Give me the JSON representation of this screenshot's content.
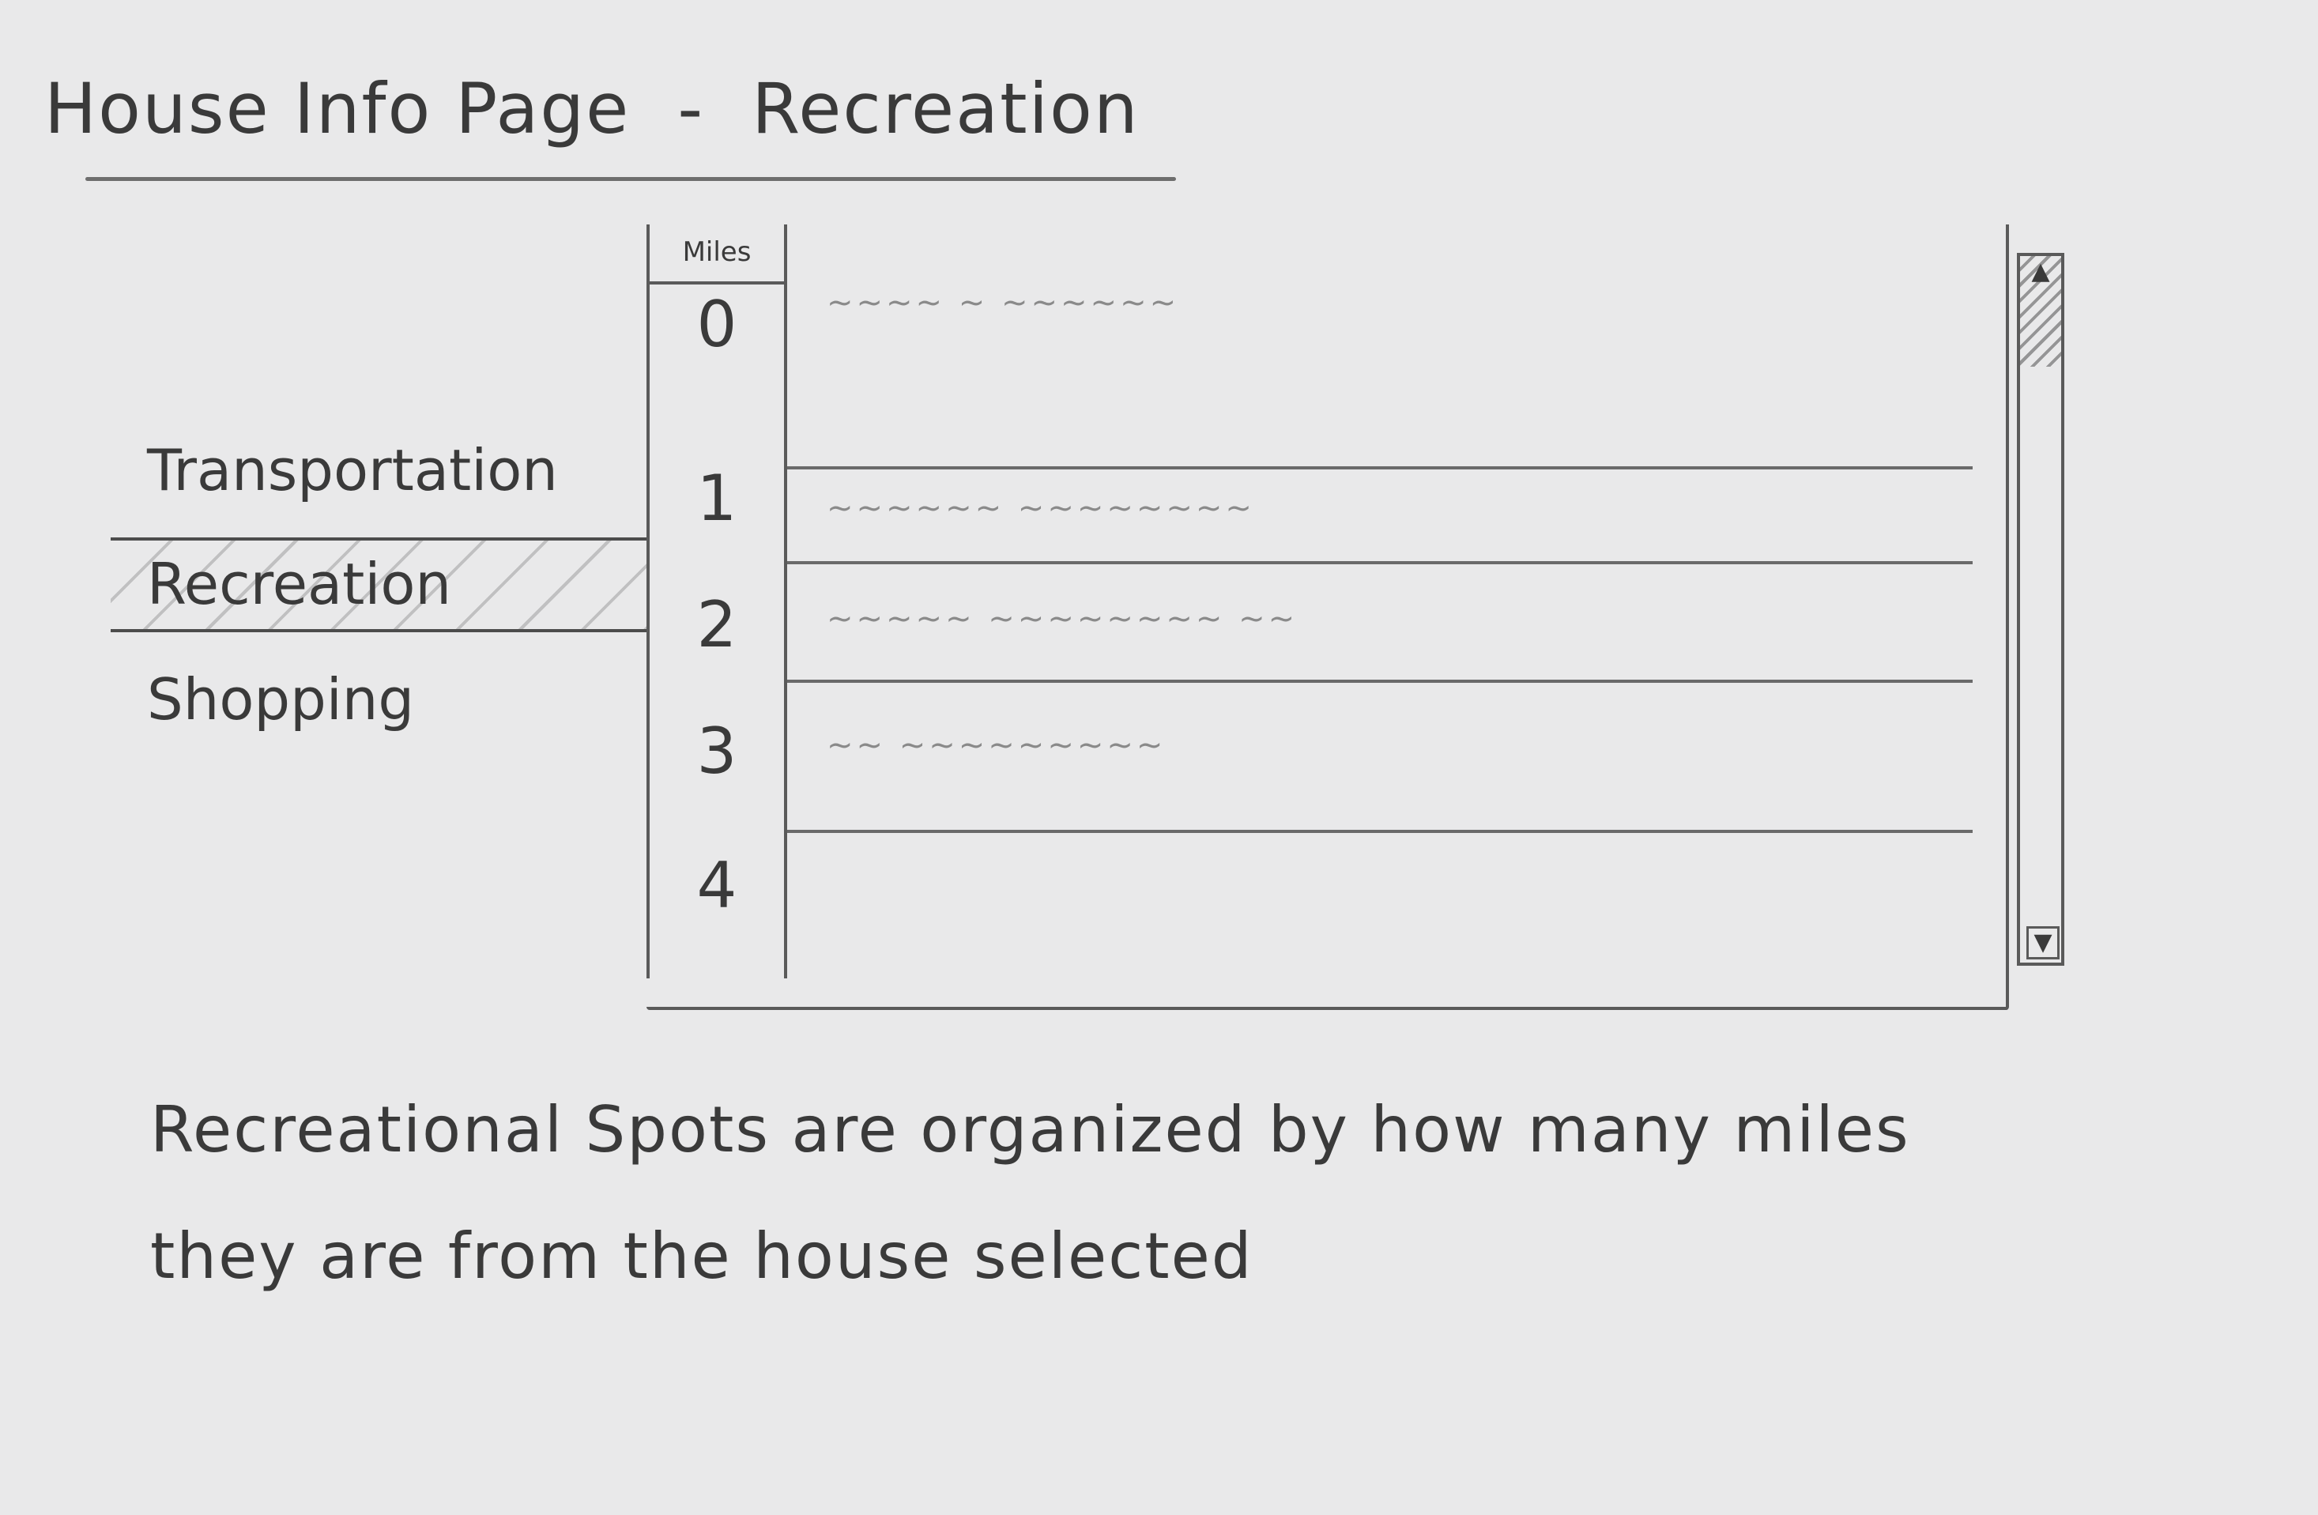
{
  "header": {
    "title": "House Info Page",
    "separator": "-",
    "section": "Recreation"
  },
  "nav": {
    "items": [
      {
        "label": "Transportation",
        "selected": false
      },
      {
        "label": "Recreation",
        "selected": true
      },
      {
        "label": "Shopping",
        "selected": false
      }
    ]
  },
  "table": {
    "column_header": "Miles",
    "miles": [
      "0",
      "1",
      "2",
      "3",
      "4"
    ],
    "rows": [
      {
        "text": "~~~~ ~ ~~~~~~"
      },
      {
        "text": "~~~~~~ ~~~~~~~~"
      },
      {
        "text": "~~~~~ ~~~~~~~~ ~~"
      },
      {
        "text": "~~ ~~~~~~~~~"
      }
    ]
  },
  "scrollbar": {
    "up_icon": "arrow-up-icon",
    "down_icon": "arrow-down-icon"
  },
  "description": {
    "line1": "Recreational Spots are organized by how many miles",
    "line2": "they are from the house selected"
  }
}
